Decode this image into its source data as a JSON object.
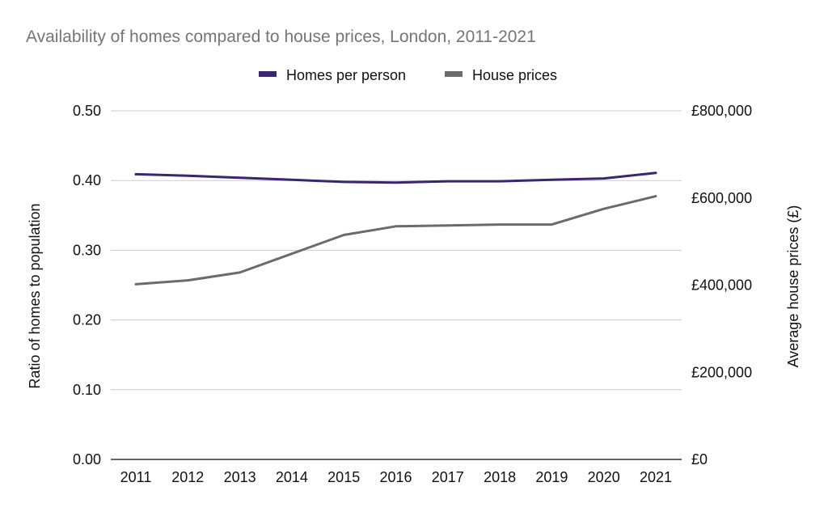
{
  "chart_data": {
    "type": "line",
    "title": "Availability of homes compared to house prices, London, 2011-2021",
    "x": [
      "2011",
      "2012",
      "2013",
      "2014",
      "2015",
      "2016",
      "2017",
      "2018",
      "2019",
      "2020",
      "2021"
    ],
    "y_left_label": "Ratio of homes to population",
    "y_right_label": "Average house prices (£)",
    "y_left_lim": [
      0,
      0.5
    ],
    "y_right_lim": [
      0,
      800000
    ],
    "y_left_ticks": [
      "0.00",
      "0.10",
      "0.20",
      "0.30",
      "0.40",
      "0.50"
    ],
    "y_right_ticks": [
      "£0",
      "£200,000",
      "£400,000",
      "£600,000",
      "£800,000"
    ],
    "grid": true,
    "legend_position": "top",
    "series": [
      {
        "name": "Homes per person",
        "axis": "left",
        "color": "#3b2378",
        "values": [
          0.409,
          0.407,
          0.404,
          0.401,
          0.398,
          0.397,
          0.399,
          0.399,
          0.401,
          0.403,
          0.411
        ]
      },
      {
        "name": "House prices",
        "axis": "right",
        "color": "#6b6b6b",
        "values": [
          402000,
          411000,
          429000,
          472000,
          515000,
          535000,
          537000,
          539000,
          539000,
          575000,
          604000
        ]
      }
    ]
  }
}
